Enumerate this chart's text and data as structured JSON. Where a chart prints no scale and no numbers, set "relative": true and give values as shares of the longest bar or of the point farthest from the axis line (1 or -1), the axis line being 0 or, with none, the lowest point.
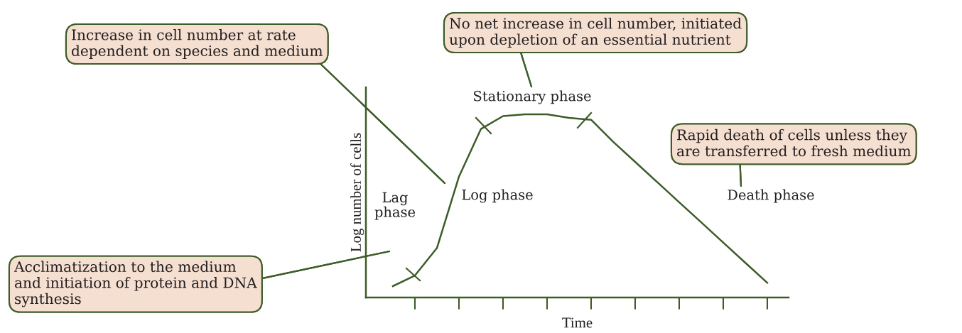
{
  "chart_data": {
    "type": "line",
    "relative": true,
    "xlabel": "Time",
    "ylabel": "Log number of cells",
    "categories": [
      null,
      null,
      null,
      null,
      null,
      null,
      null,
      null,
      null,
      null,
      null,
      null,
      null,
      null,
      null,
      null,
      null,
      null,
      null
    ],
    "series": [
      {
        "color": "#3d5c28",
        "values": [
          null,
          0.062,
          0.12,
          0.27,
          0.66,
          0.92,
          0.99,
          1.0,
          1.0,
          0.98,
          0.97,
          0.85,
          0.74,
          0.63,
          0.52,
          0.41,
          0.3,
          0.19,
          0.08
        ]
      }
    ],
    "marker": "none",
    "line_style": "solid",
    "grid": false,
    "legend": false,
    "tick_labels": false,
    "annotations": [
      "Increase in cell number at rate\ndependent on species and medium",
      "No net increase in cell number, initiated\nupon depletion of an essential nutrient",
      "Rapid death of cells unless they\nare transferred to fresh medium",
      "Acclimatization to the medium\nand initiation of protein and DNA\nsynthesis",
      "Stationary phase",
      "Log phase",
      "Lag\nphase",
      "Death phase"
    ]
  }
}
